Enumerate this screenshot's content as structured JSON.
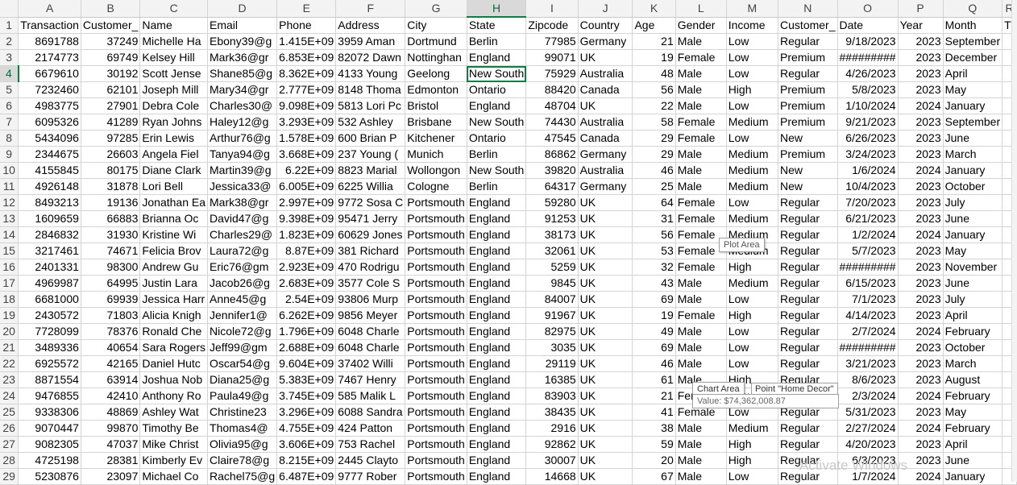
{
  "sheet": {
    "col_letters": [
      "A",
      "B",
      "C",
      "D",
      "E",
      "F",
      "G",
      "H",
      "I",
      "J",
      "K",
      "L",
      "M",
      "N",
      "O",
      "P",
      "Q",
      "R"
    ],
    "selected_col": "H",
    "selected_row": "4",
    "rows": [
      {
        "n": "1",
        "cells": [
          "Transaction",
          "Customer_",
          "Name",
          "Email",
          "Phone",
          "Address",
          "City",
          "State",
          "Zipcode",
          "Country",
          "Age",
          "Gender",
          "Income",
          "Customer_",
          "Date",
          "Year",
          "Month",
          "T"
        ]
      },
      {
        "n": "2",
        "cells": [
          "8691788",
          "37249",
          "Michelle Ha",
          "Ebony39@g",
          "1.415E+09",
          "3959 Aman",
          "Dortmund",
          "Berlin",
          "77985",
          "Germany",
          "21",
          "Male",
          "Low",
          "Regular",
          "9/18/2023",
          "2023",
          "September",
          ""
        ]
      },
      {
        "n": "3",
        "cells": [
          "2174773",
          "69749",
          "Kelsey Hill",
          "Mark36@gr",
          "6.853E+09",
          "82072 Dawn",
          "Nottinghan",
          "England",
          "99071",
          "UK",
          "19",
          "Female",
          "Low",
          "Premium",
          "#########",
          "2023",
          "December",
          ""
        ]
      },
      {
        "n": "4",
        "cells": [
          "6679610",
          "30192",
          "Scott Jense",
          "Shane85@g",
          "8.362E+09",
          "4133 Young",
          "Geelong",
          "New South",
          "75929",
          "Australia",
          "48",
          "Male",
          "Low",
          "Regular",
          "4/26/2023",
          "2023",
          "April",
          ""
        ]
      },
      {
        "n": "5",
        "cells": [
          "7232460",
          "62101",
          "Joseph Mill",
          "Mary34@gr",
          "2.777E+09",
          "8148 Thoma",
          "Edmonton",
          "Ontario",
          "88420",
          "Canada",
          "56",
          "Male",
          "High",
          "Premium",
          "5/8/2023",
          "2023",
          "May",
          ""
        ]
      },
      {
        "n": "6",
        "cells": [
          "4983775",
          "27901",
          "Debra Cole",
          "Charles30@",
          "9.098E+09",
          "5813 Lori Pc",
          "Bristol",
          "England",
          "48704",
          "UK",
          "22",
          "Male",
          "Low",
          "Premium",
          "1/10/2024",
          "2024",
          "January",
          ""
        ]
      },
      {
        "n": "7",
        "cells": [
          "6095326",
          "41289",
          "Ryan Johns",
          "Haley12@g",
          "3.293E+09",
          "532 Ashley",
          "Brisbane",
          "New South",
          "74430",
          "Australia",
          "58",
          "Female",
          "Medium",
          "Premium",
          "9/21/2023",
          "2023",
          "September",
          ""
        ]
      },
      {
        "n": "8",
        "cells": [
          "5434096",
          "97285",
          "Erin Lewis",
          "Arthur76@g",
          "1.578E+09",
          "600 Brian P",
          "Kitchener",
          "Ontario",
          "47545",
          "Canada",
          "29",
          "Female",
          "Low",
          "New",
          "6/26/2023",
          "2023",
          "June",
          ""
        ]
      },
      {
        "n": "9",
        "cells": [
          "2344675",
          "26603",
          "Angela Fiel",
          "Tanya94@g",
          "3.668E+09",
          "237 Young (",
          "Munich",
          "Berlin",
          "86862",
          "Germany",
          "29",
          "Male",
          "Medium",
          "Premium",
          "3/24/2023",
          "2023",
          "March",
          ""
        ]
      },
      {
        "n": "10",
        "cells": [
          "4155845",
          "80175",
          "Diane Clark",
          "Martin39@g",
          "6.22E+09",
          "8823 Marial",
          "Wollongon",
          "New South",
          "39820",
          "Australia",
          "46",
          "Male",
          "Medium",
          "New",
          "1/6/2024",
          "2024",
          "January",
          ""
        ]
      },
      {
        "n": "11",
        "cells": [
          "4926148",
          "31878",
          "Lori Bell",
          "Jessica33@",
          "6.005E+09",
          "6225 Willia",
          "Cologne",
          "Berlin",
          "64317",
          "Germany",
          "25",
          "Male",
          "Medium",
          "New",
          "10/4/2023",
          "2023",
          "October",
          ""
        ]
      },
      {
        "n": "12",
        "cells": [
          "8493213",
          "19136",
          "Jonathan Ea",
          "Mark38@gr",
          "2.997E+09",
          "9772 Sosa C",
          "Portsmouth",
          "England",
          "59280",
          "UK",
          "64",
          "Female",
          "Low",
          "Regular",
          "7/20/2023",
          "2023",
          "July",
          ""
        ]
      },
      {
        "n": "13",
        "cells": [
          "1609659",
          "66883",
          "Brianna Oc",
          "David47@g",
          "9.398E+09",
          "95471 Jerry",
          "Portsmouth",
          "England",
          "91253",
          "UK",
          "31",
          "Female",
          "Medium",
          "Regular",
          "6/21/2023",
          "2023",
          "June",
          ""
        ]
      },
      {
        "n": "14",
        "cells": [
          "2846832",
          "31930",
          "Kristine Wi",
          "Charles29@",
          "1.823E+09",
          "60629 Jones",
          "Portsmouth",
          "England",
          "38173",
          "UK",
          "56",
          "Female",
          "Medium",
          "Regular",
          "1/2/2024",
          "2024",
          "January",
          ""
        ]
      },
      {
        "n": "15",
        "cells": [
          "3217461",
          "74671",
          "Felicia Brov",
          "Laura72@g",
          "8.87E+09",
          "381 Richard",
          "Portsmouth",
          "England",
          "32061",
          "UK",
          "53",
          "Female",
          "Medium",
          "Regular",
          "5/7/2023",
          "2023",
          "May",
          ""
        ]
      },
      {
        "n": "16",
        "cells": [
          "2401331",
          "98300",
          "Andrew Gu",
          "Eric76@gm",
          "2.923E+09",
          "470 Rodrigu",
          "Portsmouth",
          "England",
          "5259",
          "UK",
          "32",
          "Female",
          "High",
          "Regular",
          "#########",
          "2023",
          "November",
          ""
        ]
      },
      {
        "n": "17",
        "cells": [
          "4969987",
          "64995",
          "Justin Lara",
          "Jacob26@g",
          "2.683E+09",
          "3577 Cole S",
          "Portsmouth",
          "England",
          "9845",
          "UK",
          "43",
          "Male",
          "Medium",
          "Regular",
          "6/15/2023",
          "2023",
          "June",
          ""
        ]
      },
      {
        "n": "18",
        "cells": [
          "6681000",
          "69939",
          "Jessica Harr",
          "Anne45@g",
          "2.54E+09",
          "93806 Murp",
          "Portsmouth",
          "England",
          "84007",
          "UK",
          "69",
          "Male",
          "Low",
          "Regular",
          "7/1/2023",
          "2023",
          "July",
          ""
        ]
      },
      {
        "n": "19",
        "cells": [
          "2430572",
          "71803",
          "Alicia Knigh",
          "Jennifer1@",
          "6.262E+09",
          "9856 Meyer",
          "Portsmouth",
          "England",
          "91967",
          "UK",
          "19",
          "Female",
          "High",
          "Regular",
          "4/14/2023",
          "2023",
          "April",
          ""
        ]
      },
      {
        "n": "20",
        "cells": [
          "7728099",
          "78376",
          "Ronald Che",
          "Nicole72@g",
          "1.796E+09",
          "6048 Charle",
          "Portsmouth",
          "England",
          "82975",
          "UK",
          "49",
          "Male",
          "Low",
          "Regular",
          "2/7/2024",
          "2024",
          "February",
          ""
        ]
      },
      {
        "n": "21",
        "cells": [
          "3489336",
          "40654",
          "Sara Rogers",
          "Jeff99@gm",
          "2.688E+09",
          "6048 Charle",
          "Portsmouth",
          "England",
          "3035",
          "UK",
          "69",
          "Male",
          "Low",
          "Regular",
          "#########",
          "2023",
          "October",
          ""
        ]
      },
      {
        "n": "22",
        "cells": [
          "6925572",
          "42165",
          "Daniel Hutc",
          "Oscar54@g",
          "9.604E+09",
          "37402 Willi",
          "Portsmouth",
          "England",
          "29119",
          "UK",
          "46",
          "Male",
          "Low",
          "Regular",
          "3/21/2023",
          "2023",
          "March",
          ""
        ]
      },
      {
        "n": "23",
        "cells": [
          "8871554",
          "63914",
          "Joshua Nob",
          "Diana25@g",
          "5.383E+09",
          "7467 Henry",
          "Portsmouth",
          "England",
          "16385",
          "UK",
          "61",
          "Male",
          "High",
          "Regular",
          "8/6/2023",
          "2023",
          "August",
          ""
        ]
      },
      {
        "n": "24",
        "cells": [
          "9476855",
          "42410",
          "Anthony Ro",
          "Paula49@g",
          "3.745E+09",
          "585 Malik L",
          "Portsmouth",
          "England",
          "83903",
          "UK",
          "21",
          "Female",
          "Low",
          "Regular",
          "2/3/2024",
          "2024",
          "February",
          ""
        ]
      },
      {
        "n": "25",
        "cells": [
          "9338306",
          "48869",
          "Ashley Wat",
          "Christine23",
          "3.296E+09",
          "6088 Sandra",
          "Portsmouth",
          "England",
          "38435",
          "UK",
          "41",
          "Female",
          "Low",
          "Regular",
          "5/31/2023",
          "2023",
          "May",
          ""
        ]
      },
      {
        "n": "26",
        "cells": [
          "9070447",
          "99870",
          "Timothy Be",
          "Thomas4@",
          "4.755E+09",
          "424 Patton",
          "Portsmouth",
          "England",
          "2916",
          "UK",
          "38",
          "Male",
          "Medium",
          "Regular",
          "2/27/2024",
          "2024",
          "February",
          ""
        ]
      },
      {
        "n": "27",
        "cells": [
          "9082305",
          "47037",
          "Mike Christ",
          "Olivia95@g",
          "3.606E+09",
          "753 Rachel",
          "Portsmouth",
          "England",
          "92862",
          "UK",
          "59",
          "Male",
          "High",
          "Regular",
          "4/20/2023",
          "2023",
          "April",
          ""
        ]
      },
      {
        "n": "28",
        "cells": [
          "4725198",
          "28381",
          "Kimberly Ev",
          "Claire78@g",
          "8.215E+09",
          "2445 Clayto",
          "Portsmouth",
          "England",
          "30007",
          "UK",
          "20",
          "Male",
          "High",
          "Regular",
          "6/3/2023",
          "2023",
          "June",
          ""
        ]
      },
      {
        "n": "29",
        "cells": [
          "5230876",
          "23097",
          "Michael Co",
          "Rachel75@g",
          "6.487E+09",
          "9777 Rober",
          "Portsmouth",
          "England",
          "14668",
          "UK",
          "67",
          "Male",
          "Low",
          "Regular",
          "1/7/2024",
          "2024",
          "January",
          ""
        ]
      }
    ]
  },
  "tooltips": {
    "plot_area": "Plot Area",
    "chart_area": "Chart Area",
    "point_label": "Point \"Home Decor\"",
    "point_value": "Value: $74,362,008.87"
  },
  "watermark": "Activate Windows"
}
